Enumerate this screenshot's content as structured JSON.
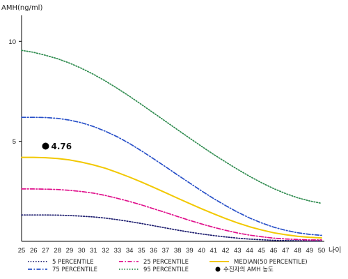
{
  "chart_data": {
    "type": "line",
    "ylabel": "AMH(ng/ml)",
    "xlabel": "나이",
    "x": [
      25,
      26,
      27,
      28,
      29,
      30,
      31,
      32,
      33,
      34,
      35,
      36,
      37,
      38,
      39,
      40,
      41,
      42,
      43,
      44,
      45,
      46,
      47,
      48,
      49,
      50
    ],
    "xlim": [
      25,
      50
    ],
    "ylim": [
      0,
      11.3
    ],
    "yticks": [
      5,
      10
    ],
    "grid": false,
    "legend_position": "bottom",
    "series": [
      {
        "name": "5 PERCENTILE",
        "color": "#1c1c6e",
        "dash": "dotted",
        "values": [
          1.32,
          1.32,
          1.32,
          1.31,
          1.29,
          1.26,
          1.22,
          1.16,
          1.08,
          0.99,
          0.89,
          0.78,
          0.67,
          0.56,
          0.46,
          0.37,
          0.29,
          0.22,
          0.16,
          0.11,
          0.08,
          0.05,
          0.04,
          0.03,
          0.02,
          0.02
        ]
      },
      {
        "name": "25 PERCENTILE",
        "color": "#e0118c",
        "dash": "dashdot",
        "values": [
          2.62,
          2.62,
          2.61,
          2.59,
          2.55,
          2.49,
          2.41,
          2.29,
          2.15,
          1.99,
          1.82,
          1.63,
          1.44,
          1.24,
          1.05,
          0.87,
          0.7,
          0.55,
          0.42,
          0.31,
          0.23,
          0.16,
          0.12,
          0.09,
          0.07,
          0.07
        ]
      },
      {
        "name": "MEDIAN(50 PERCENTILE)",
        "color": "#f2c800",
        "dash": "solid",
        "values": [
          4.2,
          4.2,
          4.18,
          4.14,
          4.07,
          3.96,
          3.82,
          3.65,
          3.44,
          3.21,
          2.96,
          2.7,
          2.43,
          2.16,
          1.89,
          1.63,
          1.38,
          1.14,
          0.92,
          0.73,
          0.57,
          0.43,
          0.33,
          0.25,
          0.2,
          0.17
        ]
      },
      {
        "name": "75 PERCENTILE",
        "color": "#2850c8",
        "dash": "dashdot",
        "values": [
          6.2,
          6.2,
          6.19,
          6.15,
          6.06,
          5.93,
          5.74,
          5.5,
          5.22,
          4.89,
          4.52,
          4.13,
          3.73,
          3.32,
          2.92,
          2.52,
          2.14,
          1.79,
          1.46,
          1.17,
          0.92,
          0.71,
          0.55,
          0.43,
          0.35,
          0.3
        ]
      },
      {
        "name": "95 PERCENTILE",
        "color": "#2e8b4e",
        "dash": "dotted",
        "values": [
          9.55,
          9.45,
          9.3,
          9.13,
          8.91,
          8.65,
          8.35,
          8.01,
          7.64,
          7.25,
          6.84,
          6.42,
          6.0,
          5.58,
          5.16,
          4.75,
          4.35,
          3.97,
          3.6,
          3.25,
          2.93,
          2.64,
          2.39,
          2.18,
          2.02,
          1.9
        ]
      }
    ],
    "annotations": [
      {
        "name": "수진자의 AMH 농도",
        "x": 27,
        "y": 4.76,
        "label": "4.76",
        "color": "#000000"
      }
    ]
  }
}
